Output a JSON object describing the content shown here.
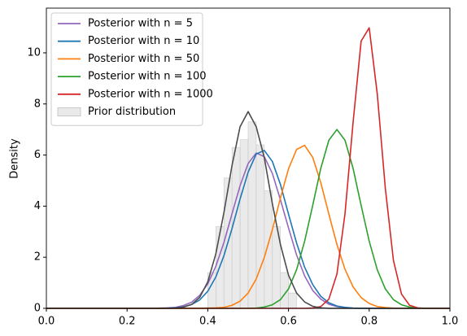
{
  "chart_data": {
    "type": "line",
    "ylabel": "Density",
    "xlim": [
      0,
      1
    ],
    "ylim": [
      0,
      11.75
    ],
    "xticks": [
      {
        "value": 0,
        "label": "0.0"
      },
      0.2,
      0.4,
      0.6,
      0.8,
      {
        "value": 1,
        "label": "1.0"
      }
    ],
    "yticks": [
      0,
      2,
      4,
      6,
      8,
      10
    ],
    "grid": false,
    "legend": "upper left",
    "x": [
      0,
      0.02,
      0.04,
      0.06,
      0.08,
      0.1,
      0.12,
      0.14,
      0.16,
      0.18,
      0.2,
      0.22,
      0.24,
      0.26,
      0.28,
      0.3,
      0.32,
      0.34,
      0.36,
      0.38,
      0.4,
      0.42,
      0.44,
      0.46,
      0.48,
      0.5,
      0.52,
      0.54,
      0.56,
      0.58,
      0.6,
      0.62,
      0.64,
      0.66,
      0.68,
      0.7,
      0.72,
      0.74,
      0.76,
      0.78,
      0.8,
      0.82,
      0.84,
      0.86,
      0.88,
      0.9,
      0.92,
      0.94,
      0.96,
      0.98,
      1
    ],
    "series": [
      {
        "name": "Posterior with n = 5",
        "color": "#9467bd",
        "values": [
          0,
          0,
          0,
          0,
          0,
          0,
          0,
          0,
          0,
          0,
          0,
          0,
          0,
          0,
          0.01,
          0.02,
          0.04,
          0.11,
          0.24,
          0.51,
          0.96,
          1.65,
          2.58,
          3.7,
          4.8,
          5.67,
          6.08,
          5.94,
          5.28,
          4.25,
          3.15,
          2.09,
          1.27,
          0.7,
          0.36,
          0.16,
          0.07,
          0.03,
          0.01,
          0,
          0,
          0,
          0,
          0,
          0,
          0,
          0,
          0,
          0,
          0,
          0
        ]
      },
      {
        "name": "Posterior with n = 10",
        "color": "#1f77b4",
        "values": [
          0,
          0,
          0,
          0,
          0,
          0,
          0,
          0,
          0,
          0,
          0,
          0,
          0,
          0,
          0,
          0.01,
          0.02,
          0.06,
          0.15,
          0.33,
          0.67,
          1.23,
          2.06,
          3.12,
          4.28,
          5.33,
          6.04,
          6.18,
          5.75,
          4.85,
          3.69,
          2.56,
          1.61,
          0.93,
          0.47,
          0.22,
          0.09,
          0.04,
          0.01,
          0,
          0,
          0,
          0,
          0,
          0,
          0,
          0,
          0,
          0,
          0,
          0
        ]
      },
      {
        "name": "Posterior with n = 50",
        "color": "#ff7f0e",
        "values": [
          0,
          0,
          0,
          0,
          0,
          0,
          0,
          0,
          0,
          0,
          0,
          0,
          0,
          0,
          0,
          0,
          0,
          0,
          0,
          0,
          0.01,
          0.02,
          0.04,
          0.12,
          0.28,
          0.6,
          1.15,
          1.99,
          3.08,
          4.32,
          5.46,
          6.22,
          6.38,
          5.91,
          4.92,
          3.69,
          2.5,
          1.53,
          0.84,
          0.42,
          0.19,
          0.07,
          0.03,
          0.01,
          0,
          0,
          0,
          0,
          0,
          0,
          0
        ]
      },
      {
        "name": "Posterior with n = 100",
        "color": "#2ca02c",
        "values": [
          0,
          0,
          0,
          0,
          0,
          0,
          0,
          0,
          0,
          0,
          0,
          0,
          0,
          0,
          0,
          0,
          0,
          0,
          0,
          0,
          0,
          0,
          0,
          0,
          0,
          0,
          0.01,
          0.05,
          0.14,
          0.34,
          0.76,
          1.51,
          2.63,
          4.03,
          5.48,
          6.58,
          7,
          6.58,
          5.48,
          4.03,
          2.63,
          1.51,
          0.76,
          0.34,
          0.14,
          0.05,
          0.01,
          0,
          0,
          0,
          0
        ]
      },
      {
        "name": "Posterior with n = 1000",
        "color": "#d62728",
        "values": [
          0,
          0,
          0,
          0,
          0,
          0,
          0,
          0,
          0,
          0,
          0,
          0,
          0,
          0,
          0,
          0,
          0,
          0,
          0,
          0,
          0,
          0,
          0,
          0,
          0,
          0,
          0,
          0,
          0,
          0,
          0,
          0,
          0,
          0.01,
          0.07,
          0.36,
          1.34,
          3.7,
          7.27,
          10.46,
          10.98,
          8.39,
          4.69,
          1.88,
          0.56,
          0.12,
          0.02,
          0,
          0,
          0,
          0
        ]
      },
      {
        "color": "#4d4d4d",
        "values": [
          0,
          0,
          0,
          0,
          0,
          0,
          0,
          0,
          0,
          0,
          0,
          0,
          0,
          0,
          0,
          0,
          0.01,
          0.05,
          0.15,
          0.43,
          1.04,
          2.14,
          3.75,
          5.59,
          7.11,
          7.7,
          7.11,
          5.9,
          4.1,
          2.5,
          1.3,
          0.6,
          0.25,
          0.08,
          0.02,
          0,
          0,
          0,
          0,
          0,
          0,
          0,
          0,
          0,
          0,
          0,
          0,
          0,
          0,
          0,
          0
        ]
      }
    ],
    "histogram": {
      "name": "Prior distribution",
      "color": "#d9d9d9",
      "bins": [
        0.4,
        0.42,
        0.44,
        0.46,
        0.48,
        0.5,
        0.52,
        0.54,
        0.56,
        0.58,
        0.6,
        0.62
      ],
      "counts": [
        1.4,
        3.2,
        5.1,
        6.3,
        6.6,
        7.3,
        6.4,
        4.6,
        3.2,
        1.4,
        0.6
      ]
    }
  }
}
